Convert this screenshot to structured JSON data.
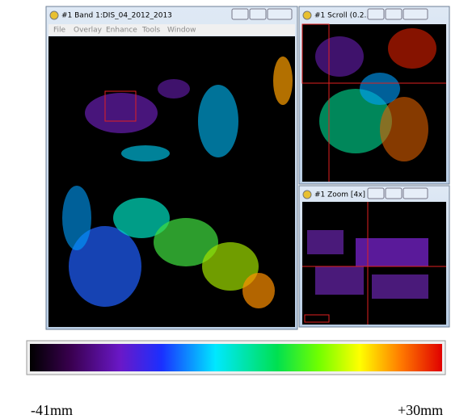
{
  "main_window": {
    "title": "#1 Band 1:DIS_04_2012_2013",
    "menu": [
      "File",
      "Overlay",
      "Enhance",
      "Tools",
      "Window"
    ]
  },
  "scroll_window": {
    "title": "#1 Scroll (0.2..."
  },
  "zoom_window": {
    "title": "#1 Zoom [4x]"
  },
  "colorbar": {
    "min_label": "-41mm",
    "max_label": "+30mm"
  }
}
